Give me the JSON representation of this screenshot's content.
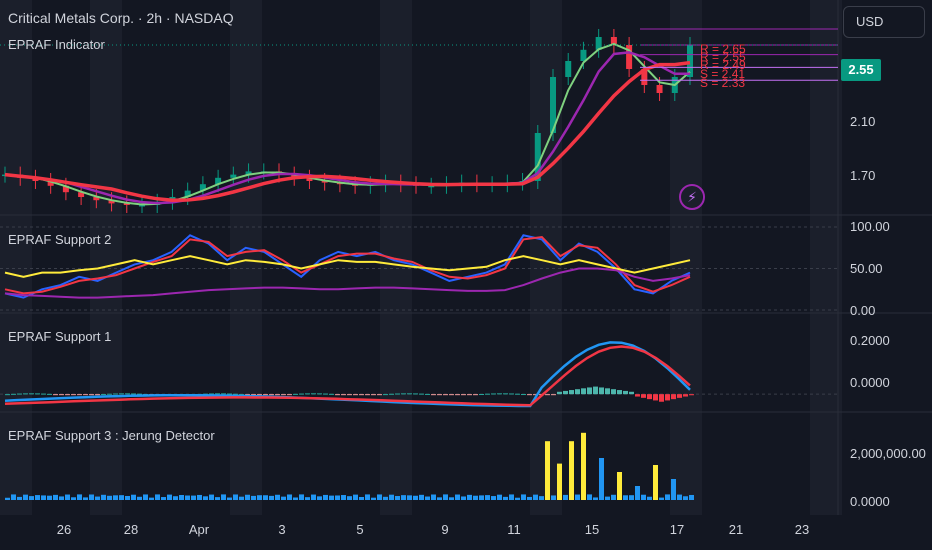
{
  "header": {
    "title": "Critical Metals Corp. · 2h · NASDAQ",
    "indicator": "EPRAF Indicator",
    "currency": "USD",
    "last_price": "2.55",
    "accent_up": "#089981",
    "accent_down": "#f23645"
  },
  "levels": [
    "R = 2.65",
    "R = 2.55",
    "R = 2.49",
    "S = 2.41",
    "S = 2.33"
  ],
  "price_axis": [
    "2.10",
    "1.70"
  ],
  "panes": {
    "support2": {
      "title": "EPRAF Support 2",
      "ticks": [
        "100.00",
        "50.00",
        "0.00"
      ]
    },
    "support1": {
      "title": "EPRAF Support 1",
      "ticks": [
        "0.2000",
        "0.0000"
      ]
    },
    "support3": {
      "title": "EPRAF Support 3 : Jerung Detector",
      "ticks": [
        "2,000,000.00",
        "0.0000"
      ]
    }
  },
  "time_axis": [
    "26",
    "28",
    "Apr",
    "3",
    "5",
    "9",
    "11",
    "15",
    "17",
    "21",
    "23"
  ],
  "chart_data": [
    {
      "type": "line",
      "title": "Critical Metals Corp. · 2h · NASDAQ",
      "subtitle": "EPRAF Indicator",
      "y_ticks": [
        2.1,
        1.7
      ],
      "ylim": [
        1.5,
        2.8
      ],
      "last": 2.55,
      "levels": [
        2.65,
        2.55,
        2.49,
        2.41,
        2.33
      ],
      "x_ticks": [
        "26",
        "28",
        "Apr",
        "3",
        "5",
        "9",
        "11",
        "15",
        "17",
        "21",
        "23"
      ],
      "close_approx": [
        1.74,
        1.72,
        1.7,
        1.67,
        1.63,
        1.6,
        1.58,
        1.56,
        1.55,
        1.55,
        1.57,
        1.6,
        1.64,
        1.68,
        1.72,
        1.74,
        1.76,
        1.76,
        1.74,
        1.72,
        1.7,
        1.69,
        1.68,
        1.67,
        1.68,
        1.69,
        1.68,
        1.67,
        1.67,
        1.68,
        1.69,
        1.68,
        1.68,
        1.69,
        1.7,
        2.0,
        2.35,
        2.45,
        2.52,
        2.6,
        2.55,
        2.4,
        2.3,
        2.25,
        2.35,
        2.55
      ]
    },
    {
      "type": "line",
      "title": "EPRAF Support 2",
      "y_ticks": [
        100,
        50,
        0
      ],
      "ylim": [
        0,
        100
      ],
      "series": [
        {
          "color": "#2962ff",
          "values": [
            20,
            15,
            25,
            30,
            40,
            35,
            45,
            55,
            60,
            70,
            90,
            80,
            60,
            75,
            70,
            55,
            40,
            60,
            70,
            65,
            70,
            60,
            55,
            45,
            35,
            40,
            45,
            55,
            90,
            85,
            60,
            80,
            70,
            50,
            25,
            20,
            35,
            45
          ]
        },
        {
          "color": "#f23645",
          "values": [
            25,
            20,
            22,
            28,
            35,
            38,
            42,
            50,
            58,
            65,
            85,
            82,
            65,
            70,
            72,
            60,
            45,
            55,
            65,
            68,
            68,
            62,
            58,
            48,
            40,
            38,
            42,
            50,
            85,
            88,
            65,
            78,
            75,
            55,
            30,
            22,
            30,
            40
          ]
        },
        {
          "color": "#ffeb3b",
          "values": [
            45,
            40,
            45,
            45,
            48,
            50,
            55,
            60,
            55,
            60,
            65,
            60,
            55,
            60,
            58,
            55,
            50,
            55,
            60,
            58,
            58,
            55,
            52,
            50,
            48,
            50,
            52,
            60,
            65,
            60,
            55,
            60,
            55,
            50,
            45,
            50,
            55,
            60
          ]
        },
        {
          "color": "#9c27b0",
          "values": [
            20,
            18,
            17,
            16,
            15,
            15,
            16,
            17,
            18,
            20,
            22,
            24,
            25,
            26,
            27,
            27,
            26,
            25,
            25,
            26,
            27,
            27,
            26,
            25,
            24,
            23,
            23,
            24,
            30,
            38,
            45,
            50,
            50,
            48,
            40,
            35,
            38,
            42
          ]
        }
      ]
    },
    {
      "type": "bar",
      "title": "EPRAF Support 1",
      "y_ticks": [
        0.2,
        0.0
      ],
      "ylim": [
        -0.05,
        0.25
      ]
    },
    {
      "type": "bar",
      "title": "EPRAF Support 3 : Jerung Detector",
      "y_ticks": [
        2000000,
        0
      ],
      "ylim": [
        0,
        2500000
      ]
    }
  ]
}
